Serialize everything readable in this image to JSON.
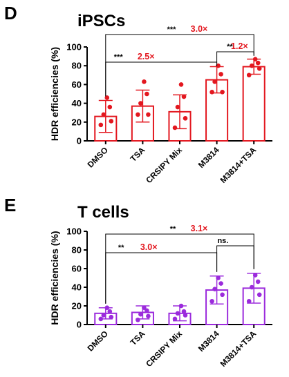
{
  "figure": {
    "panels": [
      {
        "letter": "D",
        "title": "iPSCs"
      },
      {
        "letter": "E",
        "title": "T cells"
      }
    ]
  },
  "chart_data": [
    {
      "type": "bar",
      "panel": "D",
      "title": "iPSCs",
      "xlabel": "",
      "ylabel": "HDR efficiencies (%)",
      "ylim": [
        0,
        100
      ],
      "yticks": [
        0,
        20,
        40,
        60,
        80,
        100
      ],
      "categories": [
        "DMSO",
        "TSA",
        "CRSIPY Mix",
        "M3814",
        "M3814+TSA"
      ],
      "values": [
        26,
        37,
        31,
        65,
        79
      ],
      "error_sd": [
        17,
        17,
        18,
        14,
        8
      ],
      "points": [
        [
          17,
          21,
          28,
          36,
          46
        ],
        [
          28,
          28,
          40,
          50,
          63
        ],
        [
          14,
          24,
          36,
          47,
          60
        ],
        [
          52,
          52,
          63,
          71,
          80
        ],
        [
          70,
          77,
          80,
          83,
          87
        ]
      ],
      "color": "#e3171f",
      "grid": false,
      "comparisons": [
        {
          "from": "DMSO",
          "to": "M3814",
          "stars": "***",
          "fold": "2.5×"
        },
        {
          "from": "DMSO",
          "to": "M3814+TSA",
          "stars": "***",
          "fold": "3.0×"
        },
        {
          "from": "M3814",
          "to": "M3814+TSA",
          "stars": "**",
          "fold": "1.2×"
        }
      ]
    },
    {
      "type": "bar",
      "panel": "E",
      "title": "T cells",
      "xlabel": "",
      "ylabel": "HDR efficiencies (%)",
      "ylim": [
        0,
        100
      ],
      "yticks": [
        0,
        20,
        40,
        60,
        80,
        100
      ],
      "categories": [
        "DMSO",
        "TSA",
        "CRSIPY Mix",
        "M3814",
        "M3814+TSA"
      ],
      "values": [
        12,
        13,
        12,
        37,
        39
      ],
      "error_sd": [
        6,
        7,
        8,
        15,
        16
      ],
      "points": [
        [
          6,
          8,
          10,
          14,
          18
        ],
        [
          5,
          9,
          11,
          15,
          18
        ],
        [
          6,
          10,
          12,
          14,
          20
        ],
        [
          25,
          32,
          38,
          44,
          50
        ],
        [
          25,
          32,
          40,
          46,
          53
        ]
      ],
      "color": "#9b2bdc",
      "grid": false,
      "comparisons": [
        {
          "from": "DMSO",
          "to": "M3814",
          "stars": "**",
          "fold": "3.0×"
        },
        {
          "from": "DMSO",
          "to": "M3814+TSA",
          "stars": "**",
          "fold": "3.1×"
        },
        {
          "from": "M3814",
          "to": "M3814+TSA",
          "stars": "ns.",
          "fold": ""
        }
      ]
    }
  ]
}
